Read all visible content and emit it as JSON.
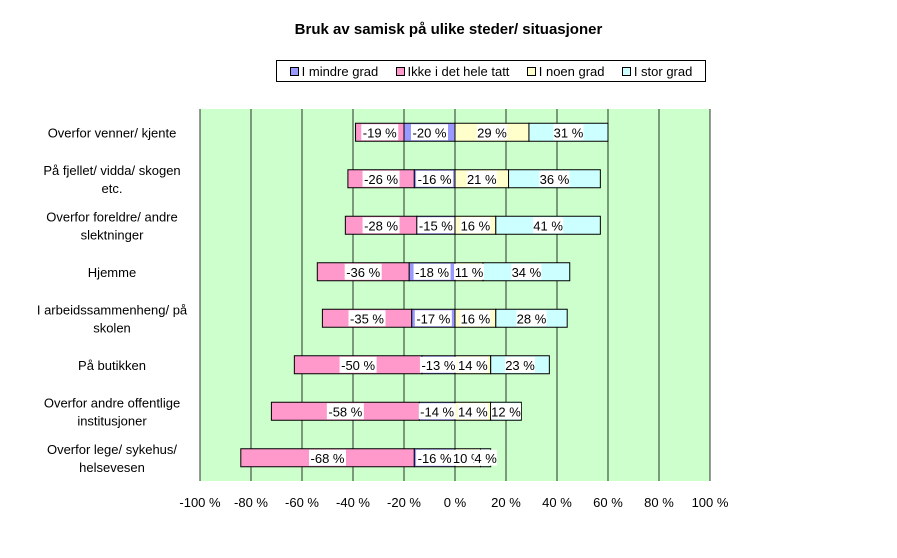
{
  "chart_data": {
    "type": "bar",
    "title": "Bruk av samisk på ulike steder/ situasjoner",
    "categories": [
      [
        "Overfor venner/ kjente"
      ],
      [
        "På fjellet/ vidda/ skogen",
        "etc."
      ],
      [
        "Overfor foreldre/ andre",
        "slektninger"
      ],
      [
        "Hjemme"
      ],
      [
        "I arbeidssammenheng/ på",
        "skolen"
      ],
      [
        "På butikken"
      ],
      [
        "Overfor andre offentlige",
        "institusjoner"
      ],
      [
        "Overfor lege/ sykehus/",
        "helsevesen"
      ]
    ],
    "series": [
      {
        "name": "I mindre grad",
        "color": "#9999ff",
        "values": [
          -20,
          -16,
          -15,
          -18,
          -17,
          -13,
          -14,
          -16
        ]
      },
      {
        "name": "Ikke i det hele tatt",
        "color": "#ff99cc",
        "values": [
          -19,
          -26,
          -28,
          -36,
          -35,
          -50,
          -58,
          -68
        ]
      },
      {
        "name": "I noen grad",
        "color": "#ffffcc",
        "values": [
          29,
          21,
          16,
          11,
          16,
          14,
          14,
          10
        ]
      },
      {
        "name": "I stor grad",
        "color": "#ccffff",
        "values": [
          31,
          36,
          41,
          34,
          28,
          23,
          12,
          4
        ]
      }
    ],
    "xlim": [
      -100,
      100
    ],
    "x_ticks": [
      "-100 %",
      "-80 %",
      "-60 %",
      "-40 %",
      "-20 %",
      "0 %",
      "20 %",
      "40 %",
      "60 %",
      "80 %",
      "100 %"
    ],
    "grid": true,
    "legend_position": "top",
    "plot_background": "#ccffcc"
  }
}
